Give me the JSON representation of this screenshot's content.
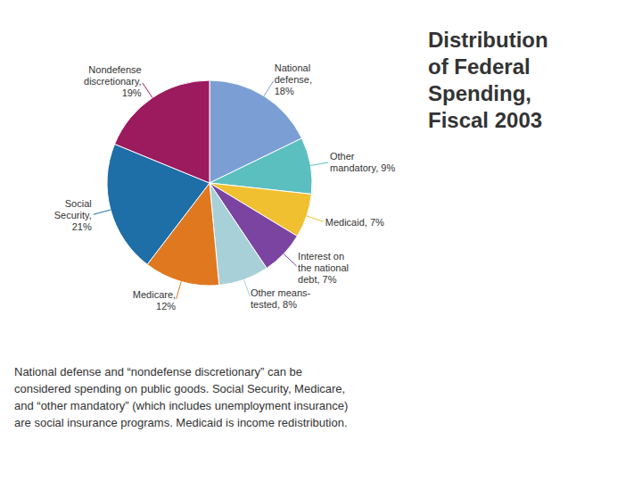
{
  "chart_data": {
    "type": "pie",
    "title": "Distribution\nof Federal\nSpending,\nFiscal 2003",
    "categories": [
      "National\ndefense,\n18%",
      "Other\nmandatory, 9%",
      "Medicaid, 7%",
      "Interest on\nthe national\ndebt, 7%",
      "Other means-\ntested, 8%",
      "Medicare,\n12%",
      "Social\nSecurity,\n21%",
      "Nondefense\ndiscretionary,\n19%"
    ],
    "values": [
      18,
      9,
      7,
      7,
      8,
      12,
      21,
      19
    ],
    "colors": [
      "#7B9FD4",
      "#5CBFBF",
      "#F0C030",
      "#7B44A0",
      "#A8D0D8",
      "#E07820",
      "#1E6EA8",
      "#9C1A5E"
    ],
    "annotations": [
      "National defense and “nondefense discretionary” can be\nconsidered spending on public goods. Social Security, Medicare,\nand “other mandatory” (which includes unemployment insurance)\nare social insurance programs. Medicaid is income redistribution."
    ]
  }
}
